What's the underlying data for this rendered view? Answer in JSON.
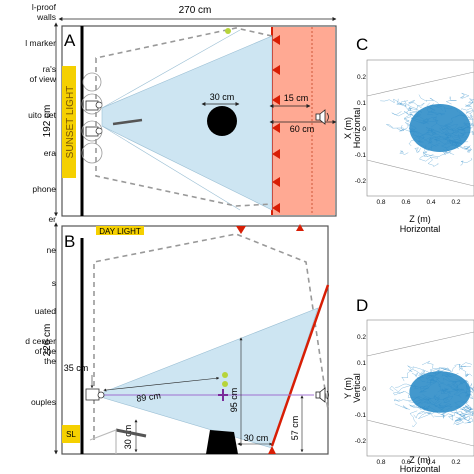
{
  "legend_items": [
    {
      "lines": [
        "l-proof",
        "walls"
      ]
    },
    {
      "lines": [
        "l marker"
      ]
    },
    {
      "lines": [
        "ra's",
        "of view"
      ]
    },
    {
      "lines": [
        "uito net"
      ]
    },
    {
      "lines": [
        "era"
      ]
    },
    {
      "lines": [
        "phone"
      ]
    },
    {
      "lines": [
        "er"
      ]
    },
    {
      "lines": [
        "ne"
      ]
    },
    {
      "lines": [
        "s"
      ]
    },
    {
      "lines": [
        "uated"
      ]
    },
    {
      "lines": [
        "d center",
        "of the",
        "the"
      ]
    },
    {
      "lines": [
        "ouples"
      ]
    }
  ],
  "panel_a": {
    "letter": "A",
    "width_label": "270 cm",
    "height_label": "192 cm",
    "light_label": "SUNSET LIGHT",
    "target_label": "30 cm",
    "dist_15": "15 cm",
    "dist_60": "60 cm"
  },
  "panel_b": {
    "letter": "B",
    "day_light_label": "DAY LIGHT",
    "height_label": "226 cm",
    "cam_height": "35 cm",
    "dist_89": "89 cm",
    "dist_95": "95 cm",
    "dist_30_v": "30 cm",
    "dist_30_h": "30 cm",
    "dist_57": "57 cm",
    "sl_label": "SL"
  },
  "panel_c": {
    "letter": "C",
    "ylabel": "X (m)",
    "ylabel_sub": "Horizontal",
    "xlabel": "Z (m)",
    "xlabel_sub": "Horizontal",
    "yticks": [
      "0.2",
      "0.1",
      "0",
      "-0.1",
      "-0.2"
    ],
    "xticks": [
      "0.8",
      "0.6",
      "0.4",
      "0.2",
      "0"
    ]
  },
  "panel_d": {
    "letter": "D",
    "ylabel": "Y (m)",
    "ylabel_sub": "Vertical",
    "xlabel": "Z (m)",
    "xlabel_sub": "Horizontal",
    "yticks": [
      "0.2",
      "0.1",
      "0",
      "-0.1",
      "-0.2"
    ],
    "xticks": [
      "0.8",
      "0.6",
      "0.4",
      "0.2",
      "0"
    ]
  },
  "colors": {
    "light_yellow": "#f5d000",
    "net_red": "#ff9a80",
    "wall_red": "#d81e05",
    "fov_blue": "#cde5f2",
    "track_blue": "#2f8dc8",
    "marker_green": "#b7d43a",
    "purple": "#7a2a9a"
  }
}
